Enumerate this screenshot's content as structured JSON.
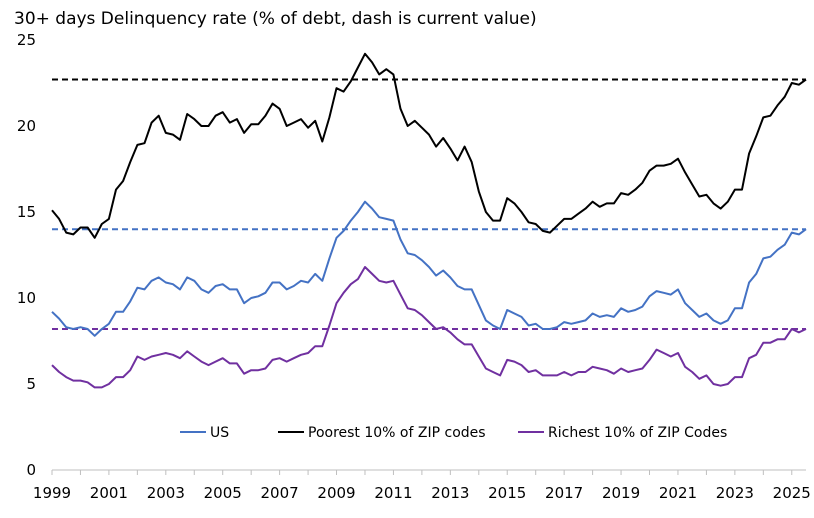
{
  "chart_data": {
    "type": "line",
    "title": "30+ days Delinquency rate (% of debt, dash is current value)",
    "xlabel": "",
    "ylabel": "",
    "ylim": [
      0,
      25
    ],
    "xlim": [
      1999,
      2025.5
    ],
    "y_ticks": [
      "0",
      "5",
      "10",
      "15",
      "20",
      "25"
    ],
    "x_ticks": [
      "1999",
      "2001",
      "2003",
      "2005",
      "2007",
      "2009",
      "2011",
      "2013",
      "2015",
      "2017",
      "2019",
      "2021",
      "2023",
      "2025"
    ],
    "x_start": 1999,
    "x_step": 0.25,
    "grid": false,
    "legend_position": "bottom-center",
    "series": [
      {
        "name": "US",
        "color": "#4472C4",
        "current_value": 14.0,
        "values": [
          9.2,
          8.8,
          8.3,
          8.2,
          8.3,
          8.2,
          7.8,
          8.2,
          8.5,
          9.2,
          9.2,
          9.8,
          10.6,
          10.5,
          11.0,
          11.2,
          10.9,
          10.8,
          10.5,
          11.2,
          11.0,
          10.5,
          10.3,
          10.7,
          10.8,
          10.5,
          10.5,
          9.7,
          10.0,
          10.1,
          10.3,
          10.9,
          10.9,
          10.5,
          10.7,
          11.0,
          10.9,
          11.4,
          11.0,
          12.3,
          13.5,
          13.9,
          14.5,
          15.0,
          15.6,
          15.2,
          14.7,
          14.6,
          14.5,
          13.4,
          12.6,
          12.5,
          12.2,
          11.8,
          11.3,
          11.6,
          11.2,
          10.7,
          10.5,
          10.5,
          9.6,
          8.7,
          8.4,
          8.2,
          9.3,
          9.1,
          8.9,
          8.4,
          8.5,
          8.2,
          8.2,
          8.3,
          8.6,
          8.5,
          8.6,
          8.7,
          9.1,
          8.9,
          9.0,
          8.9,
          9.4,
          9.2,
          9.3,
          9.5,
          10.1,
          10.4,
          10.3,
          10.2,
          10.5,
          9.7,
          9.3,
          8.9,
          9.1,
          8.7,
          8.5,
          8.7,
          9.4,
          9.4,
          10.9,
          11.4,
          12.3,
          12.4,
          12.8,
          13.1,
          13.8,
          13.7,
          14.0
        ]
      },
      {
        "name": "Poorest 10% of ZIP codes",
        "color": "#000000",
        "current_value": 22.7,
        "values": [
          15.1,
          14.6,
          13.8,
          13.7,
          14.1,
          14.1,
          13.5,
          14.3,
          14.6,
          16.3,
          16.8,
          17.9,
          18.9,
          19.0,
          20.2,
          20.6,
          19.6,
          19.5,
          19.2,
          20.7,
          20.4,
          20.0,
          20.0,
          20.6,
          20.8,
          20.2,
          20.4,
          19.6,
          20.1,
          20.1,
          20.6,
          21.3,
          21.0,
          20.0,
          20.2,
          20.4,
          19.9,
          20.3,
          19.1,
          20.5,
          22.2,
          22.0,
          22.6,
          23.4,
          24.2,
          23.7,
          23.0,
          23.3,
          23.0,
          21.0,
          20.0,
          20.3,
          19.9,
          19.5,
          18.8,
          19.3,
          18.7,
          18.0,
          18.8,
          17.9,
          16.2,
          15.0,
          14.5,
          14.5,
          15.8,
          15.5,
          15.0,
          14.4,
          14.3,
          13.9,
          13.8,
          14.2,
          14.6,
          14.6,
          14.9,
          15.2,
          15.6,
          15.3,
          15.5,
          15.5,
          16.1,
          16.0,
          16.3,
          16.7,
          17.4,
          17.7,
          17.7,
          17.8,
          18.1,
          17.3,
          16.6,
          15.9,
          16.0,
          15.5,
          15.2,
          15.6,
          16.3,
          16.3,
          18.4,
          19.4,
          20.5,
          20.6,
          21.2,
          21.7,
          22.5,
          22.4,
          22.7
        ]
      },
      {
        "name": "Richest 10% of ZIP Codes",
        "color": "#7030A0",
        "current_value": 8.2,
        "values": [
          6.1,
          5.7,
          5.4,
          5.2,
          5.2,
          5.1,
          4.8,
          4.8,
          5.0,
          5.4,
          5.4,
          5.8,
          6.6,
          6.4,
          6.6,
          6.7,
          6.8,
          6.7,
          6.5,
          6.9,
          6.6,
          6.3,
          6.1,
          6.3,
          6.5,
          6.2,
          6.2,
          5.6,
          5.8,
          5.8,
          5.9,
          6.4,
          6.5,
          6.3,
          6.5,
          6.7,
          6.8,
          7.2,
          7.2,
          8.4,
          9.7,
          10.3,
          10.8,
          11.1,
          11.8,
          11.4,
          11.0,
          10.9,
          11.0,
          10.2,
          9.4,
          9.3,
          9.0,
          8.6,
          8.2,
          8.3,
          8.0,
          7.6,
          7.3,
          7.3,
          6.6,
          5.9,
          5.7,
          5.5,
          6.4,
          6.3,
          6.1,
          5.7,
          5.8,
          5.5,
          5.5,
          5.5,
          5.7,
          5.5,
          5.7,
          5.7,
          6.0,
          5.9,
          5.8,
          5.6,
          5.9,
          5.7,
          5.8,
          5.9,
          6.4,
          7.0,
          6.8,
          6.6,
          6.8,
          6.0,
          5.7,
          5.3,
          5.5,
          5.0,
          4.9,
          5.0,
          5.4,
          5.4,
          6.5,
          6.7,
          7.4,
          7.4,
          7.6,
          7.6,
          8.2,
          8.0,
          8.2
        ]
      }
    ]
  }
}
